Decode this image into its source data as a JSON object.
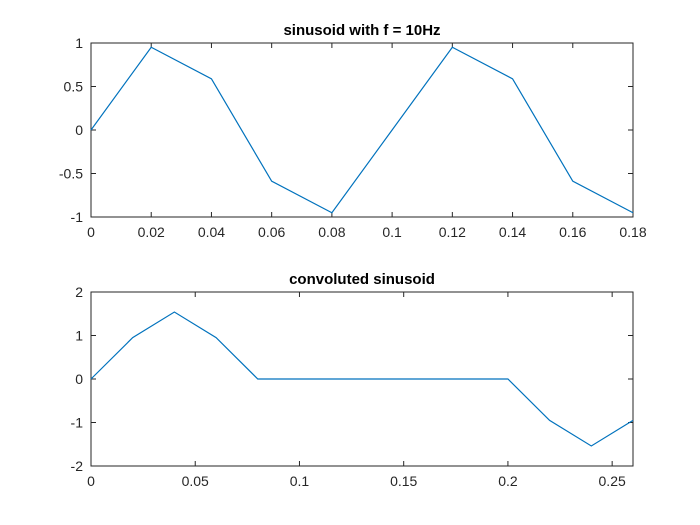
{
  "colors": {
    "series": "#0072bd",
    "axes": "#262626",
    "background": "#ffffff"
  },
  "chart_data": [
    {
      "type": "line",
      "title": "sinusoid with f = 10Hz",
      "xlabel": "",
      "ylabel": "",
      "xlim": [
        0,
        0.18
      ],
      "ylim": [
        -1,
        1
      ],
      "xticks": [
        0,
        0.02,
        0.04,
        0.06,
        0.08,
        0.1,
        0.12,
        0.14,
        0.16,
        0.18
      ],
      "xtick_labels": [
        "0",
        "0.02",
        "0.04",
        "0.06",
        "0.08",
        "0.1",
        "0.12",
        "0.14",
        "0.16",
        "0.18"
      ],
      "yticks": [
        -1,
        -0.5,
        0,
        0.5,
        1
      ],
      "ytick_labels": [
        "-1",
        "-0.5",
        "0",
        "0.5",
        "1"
      ],
      "grid": false,
      "series": [
        {
          "x": [
            0,
            0.02,
            0.04,
            0.06,
            0.08,
            0.1,
            0.12,
            0.14,
            0.16,
            0.18
          ],
          "y": [
            0,
            0.951,
            0.588,
            -0.588,
            -0.951,
            0,
            0.951,
            0.588,
            -0.588,
            -0.951
          ]
        }
      ]
    },
    {
      "type": "line",
      "title": "convoluted sinusoid",
      "xlabel": "",
      "ylabel": "",
      "xlim": [
        0,
        0.26
      ],
      "ylim": [
        -2,
        2
      ],
      "xticks": [
        0,
        0.05,
        0.1,
        0.15,
        0.2,
        0.25
      ],
      "xtick_labels": [
        "0",
        "0.05",
        "0.1",
        "0.15",
        "0.2",
        "0.25"
      ],
      "yticks": [
        -2,
        -1,
        0,
        1,
        2
      ],
      "ytick_labels": [
        "-2",
        "-1",
        "0",
        "1",
        "2"
      ],
      "grid": false,
      "series": [
        {
          "x": [
            0,
            0.02,
            0.04,
            0.06,
            0.08,
            0.1,
            0.12,
            0.14,
            0.16,
            0.18,
            0.2,
            0.22,
            0.24,
            0.26
          ],
          "y": [
            0,
            0.951,
            1.539,
            0.951,
            0,
            0,
            0,
            0,
            0,
            0,
            0,
            -0.951,
            -1.539,
            -0.951
          ]
        }
      ]
    }
  ]
}
